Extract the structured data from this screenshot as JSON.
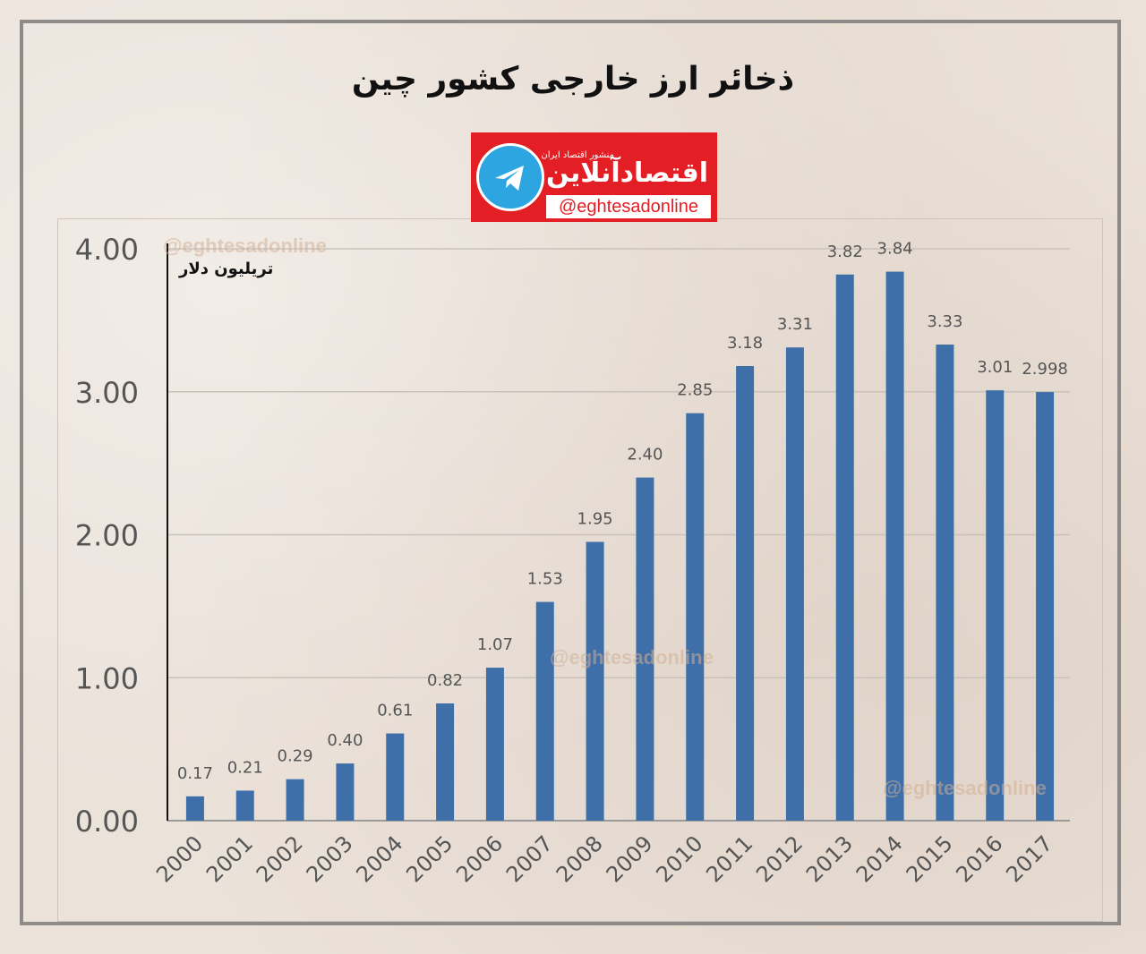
{
  "title": "ذخائر ارز خارجی کشور چین",
  "logo": {
    "small_text": "منشور اقتصاد ایران",
    "name": "اقتصادآنلاین",
    "handle": "@eghtesadonline",
    "icon": "telegram-icon"
  },
  "unit_label": "تریلیون دلار",
  "watermark": "@eghtesadonline",
  "colors": {
    "bar": "#3e6fa8",
    "background": "#ebe2da",
    "frame": "#8e8a88"
  },
  "chart_data": {
    "type": "bar",
    "title": "ذخائر ارز خارجی کشور چین",
    "ylabel": "تریلیون دلار",
    "xlabel": "",
    "categories": [
      "2000",
      "2001",
      "2002",
      "2003",
      "2004",
      "2005",
      "2006",
      "2007",
      "2008",
      "2009",
      "2010",
      "2011",
      "2012",
      "2013",
      "2014",
      "2015",
      "2016",
      "2017"
    ],
    "values": [
      0.17,
      0.21,
      0.29,
      0.4,
      0.61,
      0.82,
      1.07,
      1.53,
      1.95,
      2.4,
      2.85,
      3.18,
      3.31,
      3.82,
      3.84,
      3.33,
      3.01,
      2.998
    ],
    "value_labels": [
      "0.17",
      "0.21",
      "0.29",
      "0.40",
      "0.61",
      "0.82",
      "1.07",
      "1.53",
      "1.95",
      "2.40",
      "2.85",
      "3.18",
      "3.31",
      "3.82",
      "3.84",
      "3.33",
      "3.01",
      "2.998"
    ],
    "ylim": [
      0,
      4
    ],
    "yticks": [
      "0.00",
      "1.00",
      "2.00",
      "3.00",
      "4.00"
    ],
    "grid": true,
    "legend": "none"
  }
}
